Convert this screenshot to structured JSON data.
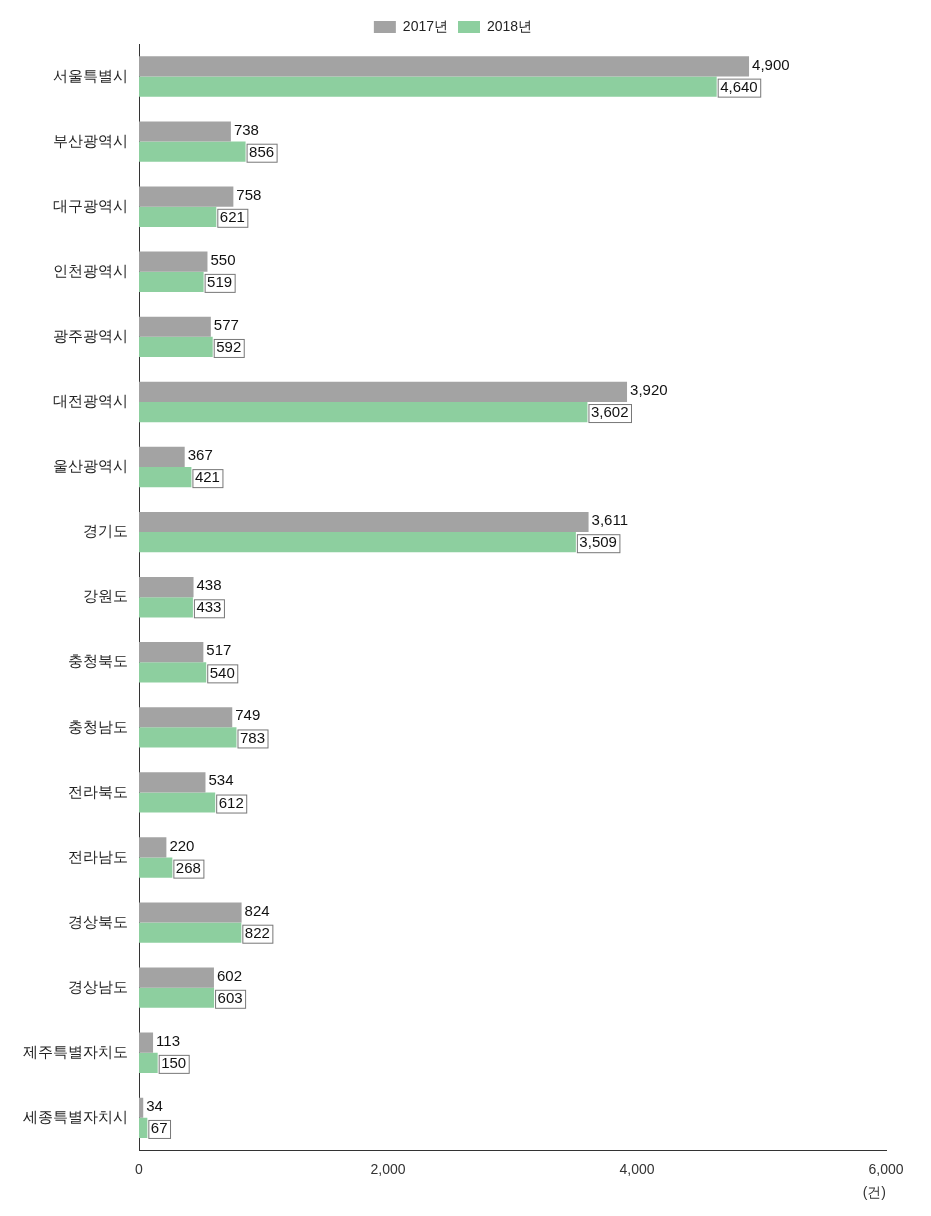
{
  "chart_data": {
    "type": "bar",
    "orientation": "horizontal",
    "categories": [
      "서울특별시",
      "부산광역시",
      "대구광역시",
      "인천광역시",
      "광주광역시",
      "대전광역시",
      "울산광역시",
      "경기도",
      "강원도",
      "충청북도",
      "충청남도",
      "전라북도",
      "전라남도",
      "경상북도",
      "경상남도",
      "제주특별자치도",
      "세종특별자치시"
    ],
    "series": [
      {
        "name": "2017년",
        "color": "#a3a3a3",
        "values": [
          4900,
          738,
          758,
          550,
          577,
          3920,
          367,
          3611,
          438,
          517,
          749,
          534,
          220,
          824,
          602,
          113,
          34
        ],
        "value_labels": [
          "4,900",
          "738",
          "758",
          "550",
          "577",
          "3,920",
          "367",
          "3,611",
          "438",
          "517",
          "749",
          "534",
          "220",
          "824",
          "602",
          "113",
          "34"
        ]
      },
      {
        "name": "2018년",
        "color": "#8dcf9f",
        "values": [
          4640,
          856,
          621,
          519,
          592,
          3602,
          421,
          3509,
          433,
          540,
          783,
          612,
          268,
          822,
          603,
          150,
          67
        ],
        "value_labels": [
          "4,640",
          "856",
          "621",
          "519",
          "592",
          "3,602",
          "421",
          "3,509",
          "433",
          "540",
          "783",
          "612",
          "268",
          "822",
          "603",
          "150",
          "67"
        ]
      }
    ],
    "x_label": "(건)",
    "xlim": [
      0,
      6000
    ],
    "xticks": [
      0,
      {
        "value": 2000,
        "label": "2,000"
      },
      {
        "value": 4000,
        "label": "4,000"
      },
      {
        "value": 6000,
        "label": "6,000"
      }
    ],
    "grid": false,
    "legend": "top",
    "data_labels": true
  }
}
